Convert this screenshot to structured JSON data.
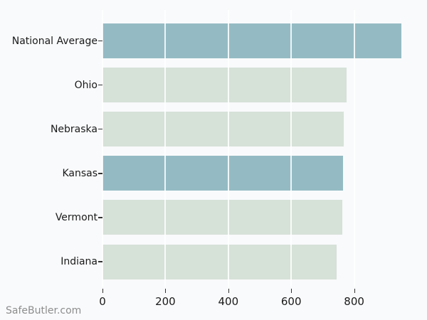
{
  "watermark": "SafeButler.com",
  "colors": {
    "background": "#f9fafc",
    "bar_normal": "#d6e1d8",
    "bar_highlight": "#94bbc4",
    "gridline": "#ffffff",
    "tick_mark": "#333333",
    "axis_label": "#1a1a1a",
    "watermark_text": "#8d8d8d"
  },
  "chart_data": {
    "type": "bar",
    "orientation": "horizontal",
    "title": "",
    "xlabel": "",
    "ylabel": "",
    "categories": [
      "National Average",
      "Ohio",
      "Nebraska",
      "Kansas",
      "Vermont",
      "Indiana"
    ],
    "values": [
      950,
      777,
      766,
      765,
      762,
      745
    ],
    "highlighted_categories": [
      "National Average",
      "Kansas"
    ],
    "bar_colors": [
      "#94bbc4",
      "#d6e1d8",
      "#d6e1d8",
      "#94bbc4",
      "#d6e1d8",
      "#d6e1d8"
    ],
    "x_ticks": [
      0,
      200,
      400,
      600,
      800
    ],
    "xlim": [
      0,
      1000
    ],
    "grid": true,
    "legend": false
  }
}
